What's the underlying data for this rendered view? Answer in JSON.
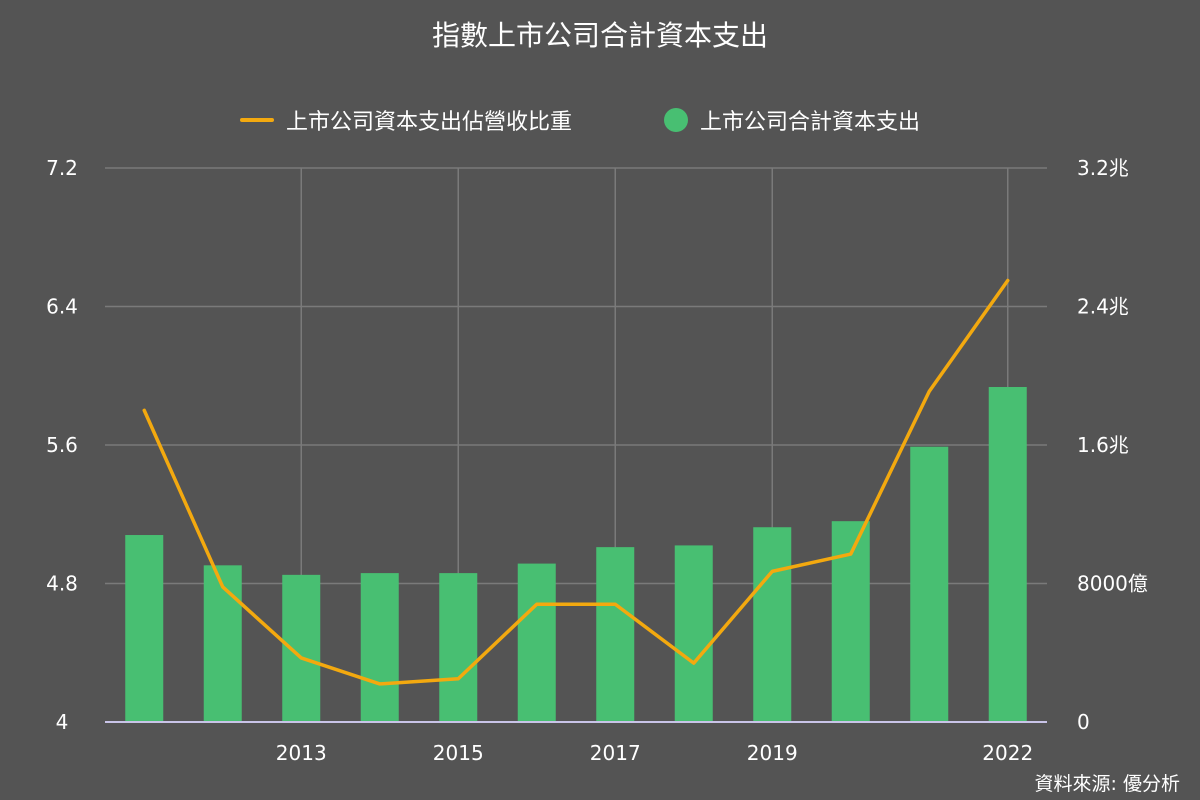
{
  "title": "指數上市公司合計資本支出",
  "source": "資料來源: 優分析",
  "colors": {
    "background": "#545454",
    "bars": "#48bf72",
    "line": "#f3a90f",
    "grid": "#7a7a7a",
    "axis": "#c9c4e8"
  },
  "chart_data": {
    "type": "bar",
    "x": [
      2011,
      2012,
      2013,
      2014,
      2015,
      2016,
      2017,
      2018,
      2019,
      2020,
      2021,
      2022
    ],
    "x_tick_labels": [
      "2013",
      "2015",
      "2017",
      "2019",
      "2022"
    ],
    "x_tick_values": [
      2013,
      2015,
      2017,
      2019,
      2022
    ],
    "series": [
      {
        "name": "上市公司合計資本支出",
        "type": "bar",
        "axis": "right",
        "legend_marker": "circle",
        "values_yi": [
          10800,
          9050,
          8500,
          8600,
          8600,
          9150,
          10100,
          10200,
          11250,
          11600,
          15900,
          19350
        ]
      },
      {
        "name": "上市公司資本支出佔營收比重",
        "type": "line",
        "axis": "left",
        "legend_marker": "line",
        "values": [
          5.8,
          4.78,
          4.37,
          4.22,
          4.25,
          4.68,
          4.68,
          4.34,
          4.87,
          4.97,
          5.91,
          6.55
        ]
      }
    ],
    "y_left": {
      "ylim": [
        4,
        7.2
      ],
      "ticks": [
        4,
        4.8,
        5.6,
        6.4,
        7.2
      ],
      "tick_labels": [
        "4",
        "4.8",
        "5.6",
        "6.4",
        "7.2"
      ]
    },
    "y_right": {
      "ylim_yi": [
        0,
        32000
      ],
      "ticks_yi": [
        0,
        8000,
        16000,
        24000,
        32000
      ],
      "tick_labels": [
        "0",
        "8000億",
        "1.6兆",
        "2.4兆",
        "3.2兆"
      ]
    },
    "grid": true,
    "legend_position": "top"
  }
}
